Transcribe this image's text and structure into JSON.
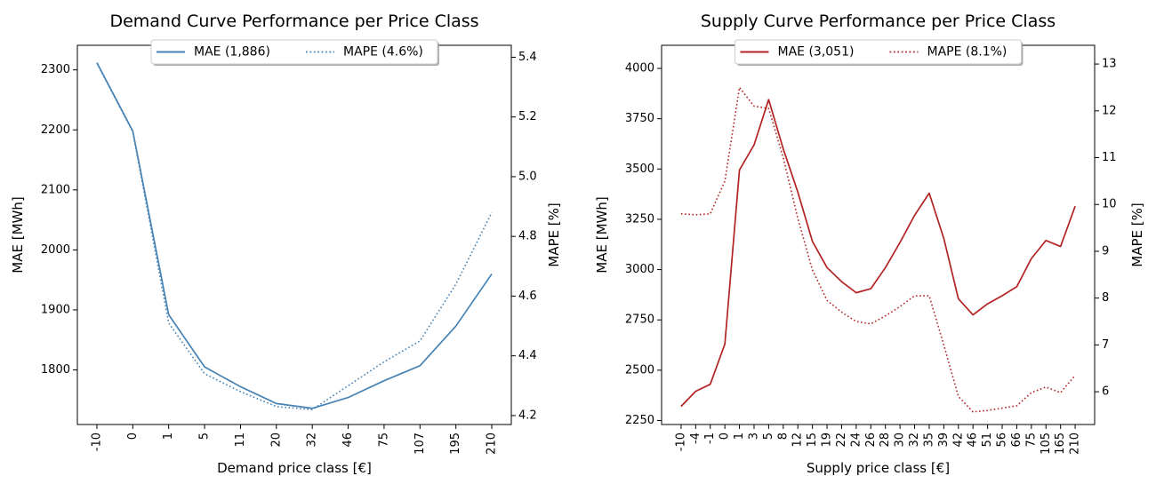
{
  "chart_data": [
    {
      "type": "line",
      "title": "Demand Curve Performance per Price Class",
      "xlabel": "Demand price class [€]",
      "ylabel": "MAE [MWh]",
      "y2label": "MAPE [%]",
      "categories": [
        "-10",
        "0",
        "1",
        "5",
        "11",
        "20",
        "32",
        "46",
        "75",
        "107",
        "195",
        "210"
      ],
      "ylim": [
        1709,
        2341
      ],
      "y2lim": [
        4.17,
        5.44
      ],
      "yticks": [
        1800,
        1900,
        2000,
        2100,
        2200,
        2300
      ],
      "y2ticks": [
        4.2,
        4.4,
        4.6,
        4.8,
        5.0,
        5.2,
        5.4
      ],
      "y2tick_labels": [
        "4.2",
        "4.4",
        "4.6",
        "4.8",
        "5.0",
        "5.2",
        "5.4"
      ],
      "legend_position": "top-center",
      "series": [
        {
          "name": "MAE (1,886)",
          "axis": "left",
          "style": "solid",
          "color": "#4682b4",
          "values": [
            2312,
            2198,
            1892,
            1805,
            1772,
            1744,
            1736,
            1754,
            1782,
            1807,
            1873,
            1960
          ]
        },
        {
          "name": "MAPE (4.6%)",
          "axis": "right",
          "style": "dotted",
          "color": "#4682b4",
          "values": [
            5.38,
            5.15,
            4.51,
            4.34,
            4.28,
            4.23,
            4.22,
            4.3,
            4.38,
            4.45,
            4.64,
            4.88
          ]
        }
      ]
    },
    {
      "type": "line",
      "title": "Supply Curve Performance per Price Class",
      "xlabel": "Supply price class [€]",
      "ylabel": "MAE [MWh]",
      "y2label": "MAPE [%]",
      "categories": [
        "-10",
        "-4",
        "-1",
        "0",
        "1",
        "3",
        "5",
        "8",
        "12",
        "15",
        "19",
        "22",
        "24",
        "26",
        "28",
        "30",
        "32",
        "35",
        "39",
        "42",
        "46",
        "51",
        "56",
        "66",
        "75",
        "105",
        "165",
        "210"
      ],
      "ylim": [
        2230,
        4115
      ],
      "y2lim": [
        5.3,
        13.4
      ],
      "yticks": [
        2250,
        2500,
        2750,
        3000,
        3250,
        3500,
        3750,
        4000
      ],
      "y2ticks": [
        6,
        7,
        8,
        9,
        10,
        11,
        12,
        13
      ],
      "y2tick_labels": [
        "6",
        "7",
        "8",
        "9",
        "10",
        "11",
        "12",
        "13"
      ],
      "legend_position": "top-center",
      "series": [
        {
          "name": "MAE (3,051)",
          "axis": "left",
          "style": "solid",
          "color": "#b22222",
          "values": [
            2320,
            2395,
            2430,
            2630,
            3495,
            3620,
            3845,
            3600,
            3385,
            3140,
            3010,
            2940,
            2885,
            2905,
            3010,
            3135,
            3270,
            3380,
            3155,
            2855,
            2775,
            2830,
            2870,
            2915,
            3055,
            3145,
            3115,
            3315
          ]
        },
        {
          "name": "MAPE (8.1%)",
          "axis": "right",
          "style": "dotted",
          "color": "#b22222",
          "values": [
            9.8,
            9.78,
            9.8,
            10.5,
            12.5,
            12.1,
            12.05,
            11.0,
            9.7,
            8.6,
            7.95,
            7.7,
            7.5,
            7.45,
            7.62,
            7.82,
            8.05,
            8.05,
            7.0,
            5.9,
            5.57,
            5.6,
            5.65,
            5.7,
            5.98,
            6.1,
            5.98,
            6.35
          ]
        }
      ]
    }
  ]
}
